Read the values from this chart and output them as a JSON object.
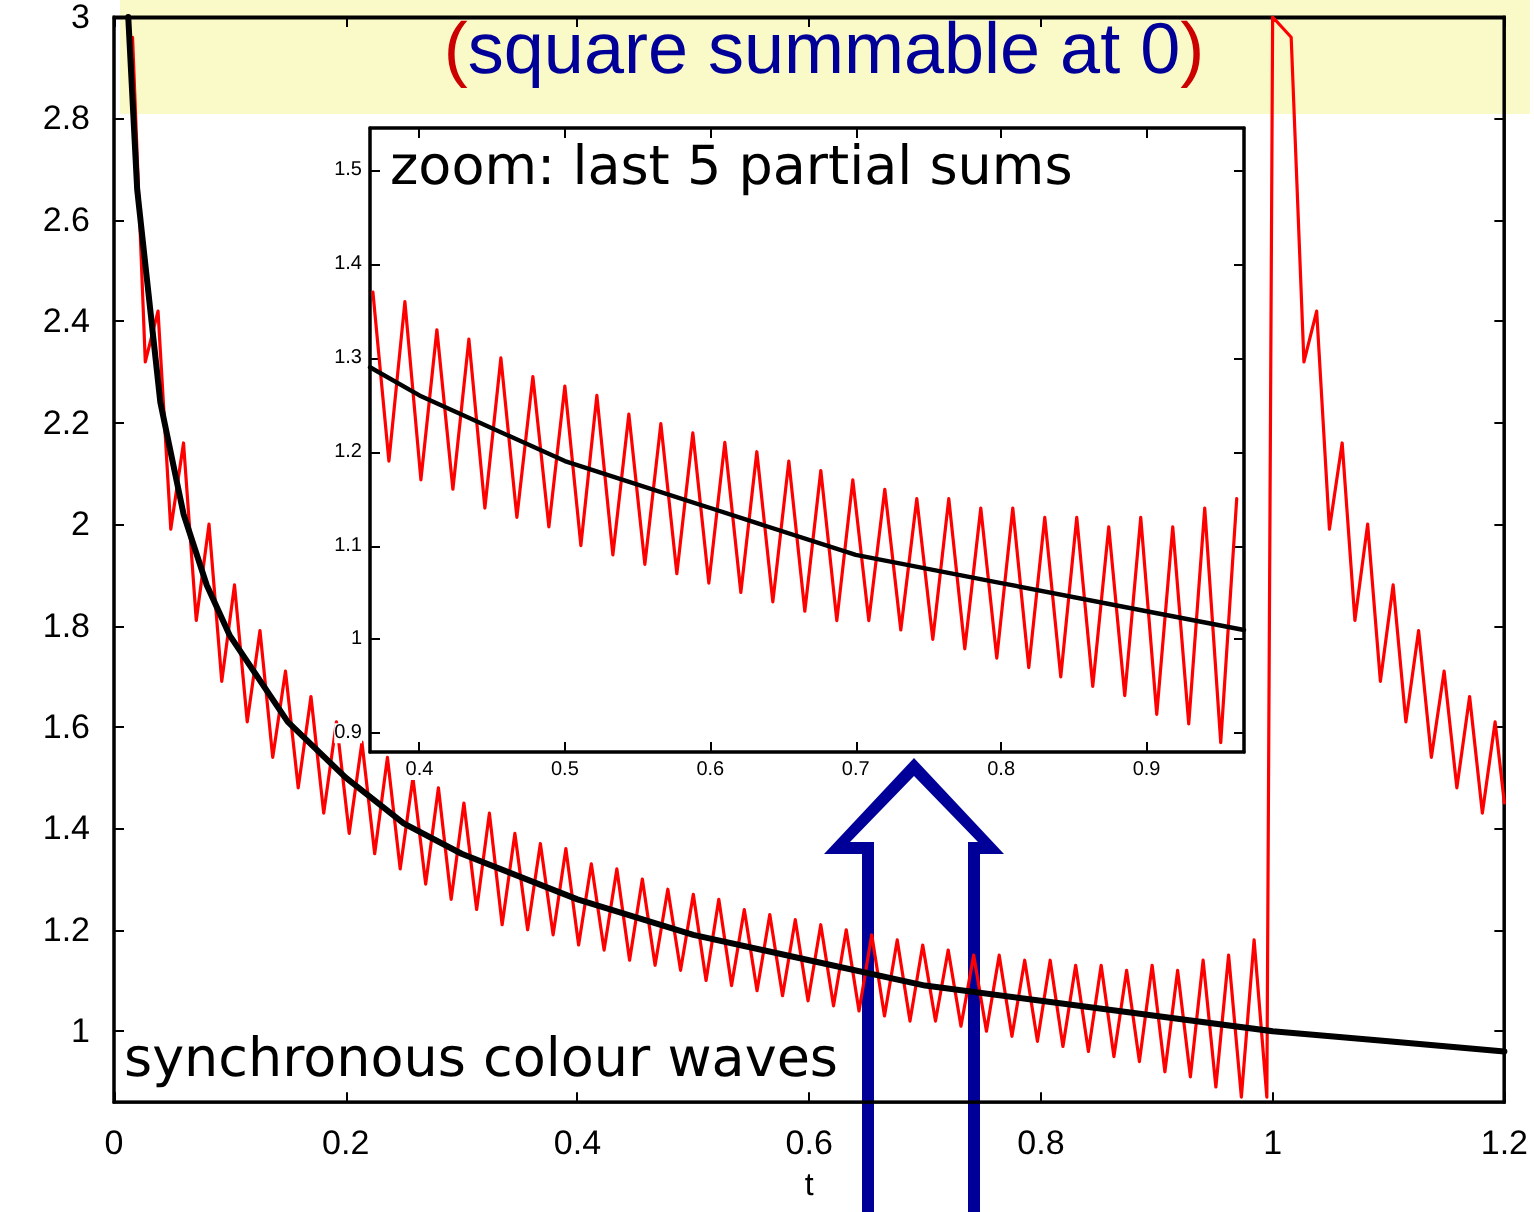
{
  "chart_data": [
    {
      "type": "line",
      "title": "(square summable at 0)",
      "xlabel": "t",
      "annotations": [
        "synchronous colour waves"
      ],
      "xlim": [
        0,
        1.2
      ],
      "xticks": [
        0,
        0.2,
        0.4,
        0.6,
        0.8,
        1,
        1.2
      ],
      "ylim": [
        0.86,
        3
      ],
      "yticks": [
        1,
        1.2,
        1.4,
        1.6,
        1.8,
        2,
        2.2,
        2.4,
        2.6,
        2.8,
        3
      ],
      "grid": false,
      "series": [
        {
          "color": "#ff0000",
          "x": [
            0.016,
            0.027,
            0.038,
            0.049,
            0.06,
            0.071,
            0.082,
            0.093,
            0.104,
            0.115,
            0.126,
            0.137,
            0.148,
            0.159,
            0.17,
            0.181,
            0.192,
            0.203,
            0.214,
            0.225,
            0.236,
            0.247,
            0.258,
            0.269,
            0.28,
            0.291,
            0.302,
            0.313,
            0.324,
            0.335,
            0.346,
            0.357,
            0.368,
            0.379,
            0.39,
            0.401,
            0.412,
            0.423,
            0.434,
            0.445,
            0.456,
            0.467,
            0.478,
            0.489,
            0.5,
            0.511,
            0.522,
            0.533,
            0.544,
            0.555,
            0.566,
            0.577,
            0.588,
            0.599,
            0.61,
            0.621,
            0.632,
            0.643,
            0.654,
            0.665,
            0.676,
            0.687,
            0.698,
            0.709,
            0.72,
            0.731,
            0.742,
            0.753,
            0.764,
            0.775,
            0.786,
            0.797,
            0.808,
            0.819,
            0.83,
            0.841,
            0.852,
            0.863,
            0.874,
            0.885,
            0.896,
            0.907,
            0.918,
            0.929,
            0.94,
            0.951,
            0.962,
            0.973,
            0.984,
            0.995,
            1.0,
            1.016,
            1.027,
            1.038,
            1.049,
            1.06,
            1.071,
            1.082,
            1.093,
            1.104,
            1.115,
            1.126,
            1.137,
            1.148,
            1.159,
            1.17,
            1.181,
            1.192,
            1.2
          ],
          "values": [
            2.96,
            2.32,
            2.42,
            1.99,
            2.16,
            1.81,
            2.0,
            1.69,
            1.88,
            1.61,
            1.79,
            1.54,
            1.71,
            1.48,
            1.66,
            1.43,
            1.61,
            1.39,
            1.57,
            1.35,
            1.54,
            1.32,
            1.5,
            1.29,
            1.48,
            1.26,
            1.45,
            1.24,
            1.43,
            1.21,
            1.39,
            1.2,
            1.37,
            1.19,
            1.36,
            1.17,
            1.33,
            1.16,
            1.32,
            1.14,
            1.3,
            1.13,
            1.28,
            1.12,
            1.27,
            1.1,
            1.26,
            1.09,
            1.24,
            1.08,
            1.23,
            1.07,
            1.22,
            1.06,
            1.21,
            1.05,
            1.2,
            1.04,
            1.19,
            1.03,
            1.18,
            1.02,
            1.17,
            1.02,
            1.16,
            1.01,
            1.15,
            1.0,
            1.15,
            0.99,
            1.14,
            0.98,
            1.14,
            0.97,
            1.13,
            0.96,
            1.13,
            0.95,
            1.12,
            0.94,
            1.13,
            0.92,
            1.12,
            0.91,
            1.14,
            0.89,
            1.15,
            0.87,
            1.18,
            0.87,
            3.0,
            2.96,
            2.32,
            2.42,
            1.99,
            2.16,
            1.81,
            2.0,
            1.69,
            1.88,
            1.61,
            1.79,
            1.54,
            1.71,
            1.48,
            1.66,
            1.43,
            1.61,
            1.45
          ]
        },
        {
          "color": "#000000",
          "x": [
            0.0123,
            0.02,
            0.04,
            0.06,
            0.08,
            0.1,
            0.15,
            0.2,
            0.25,
            0.3,
            0.4,
            0.5,
            0.6,
            0.7,
            0.8,
            0.9,
            1.0,
            1.1,
            1.2
          ],
          "values": [
            3.0,
            2.66,
            2.24,
            2.02,
            1.88,
            1.78,
            1.61,
            1.5,
            1.41,
            1.35,
            1.26,
            1.19,
            1.14,
            1.09,
            1.06,
            1.03,
            1.0,
            0.98,
            0.96
          ]
        }
      ]
    },
    {
      "type": "line",
      "title": "zoom: last 5 partial sums",
      "xlim": [
        0.366,
        0.967
      ],
      "xticks": [
        0.4,
        0.5,
        0.6,
        0.7,
        0.8,
        0.9
      ],
      "ylim": [
        0.88,
        1.545
      ],
      "yticks": [
        0.9,
        1,
        1.1,
        1.2,
        1.3,
        1.4,
        1.5
      ],
      "grid": false,
      "series": [
        {
          "color": "#ff0000",
          "x": [
            0.368,
            0.379,
            0.39,
            0.401,
            0.412,
            0.423,
            0.434,
            0.445,
            0.456,
            0.467,
            0.478,
            0.489,
            0.5,
            0.511,
            0.522,
            0.533,
            0.544,
            0.555,
            0.566,
            0.577,
            0.588,
            0.599,
            0.61,
            0.621,
            0.632,
            0.643,
            0.654,
            0.665,
            0.676,
            0.687,
            0.698,
            0.709,
            0.72,
            0.731,
            0.742,
            0.753,
            0.764,
            0.775,
            0.786,
            0.797,
            0.808,
            0.819,
            0.83,
            0.841,
            0.852,
            0.863,
            0.874,
            0.885,
            0.896,
            0.907,
            0.918,
            0.929,
            0.94,
            0.951,
            0.962
          ],
          "values": [
            1.37,
            1.19,
            1.36,
            1.17,
            1.33,
            1.16,
            1.32,
            1.14,
            1.3,
            1.13,
            1.28,
            1.12,
            1.27,
            1.1,
            1.26,
            1.09,
            1.24,
            1.08,
            1.23,
            1.07,
            1.22,
            1.06,
            1.21,
            1.05,
            1.2,
            1.04,
            1.19,
            1.03,
            1.18,
            1.02,
            1.17,
            1.02,
            1.16,
            1.01,
            1.15,
            1.0,
            1.15,
            0.99,
            1.14,
            0.98,
            1.14,
            0.97,
            1.13,
            0.96,
            1.13,
            0.95,
            1.12,
            0.94,
            1.13,
            0.92,
            1.12,
            0.91,
            1.14,
            0.89,
            1.15
          ]
        },
        {
          "color": "#000000",
          "x": [
            0.366,
            0.4,
            0.5,
            0.6,
            0.7,
            0.8,
            0.9,
            0.967
          ],
          "values": [
            1.29,
            1.26,
            1.19,
            1.14,
            1.09,
            1.06,
            1.03,
            1.01
          ]
        }
      ]
    }
  ]
}
